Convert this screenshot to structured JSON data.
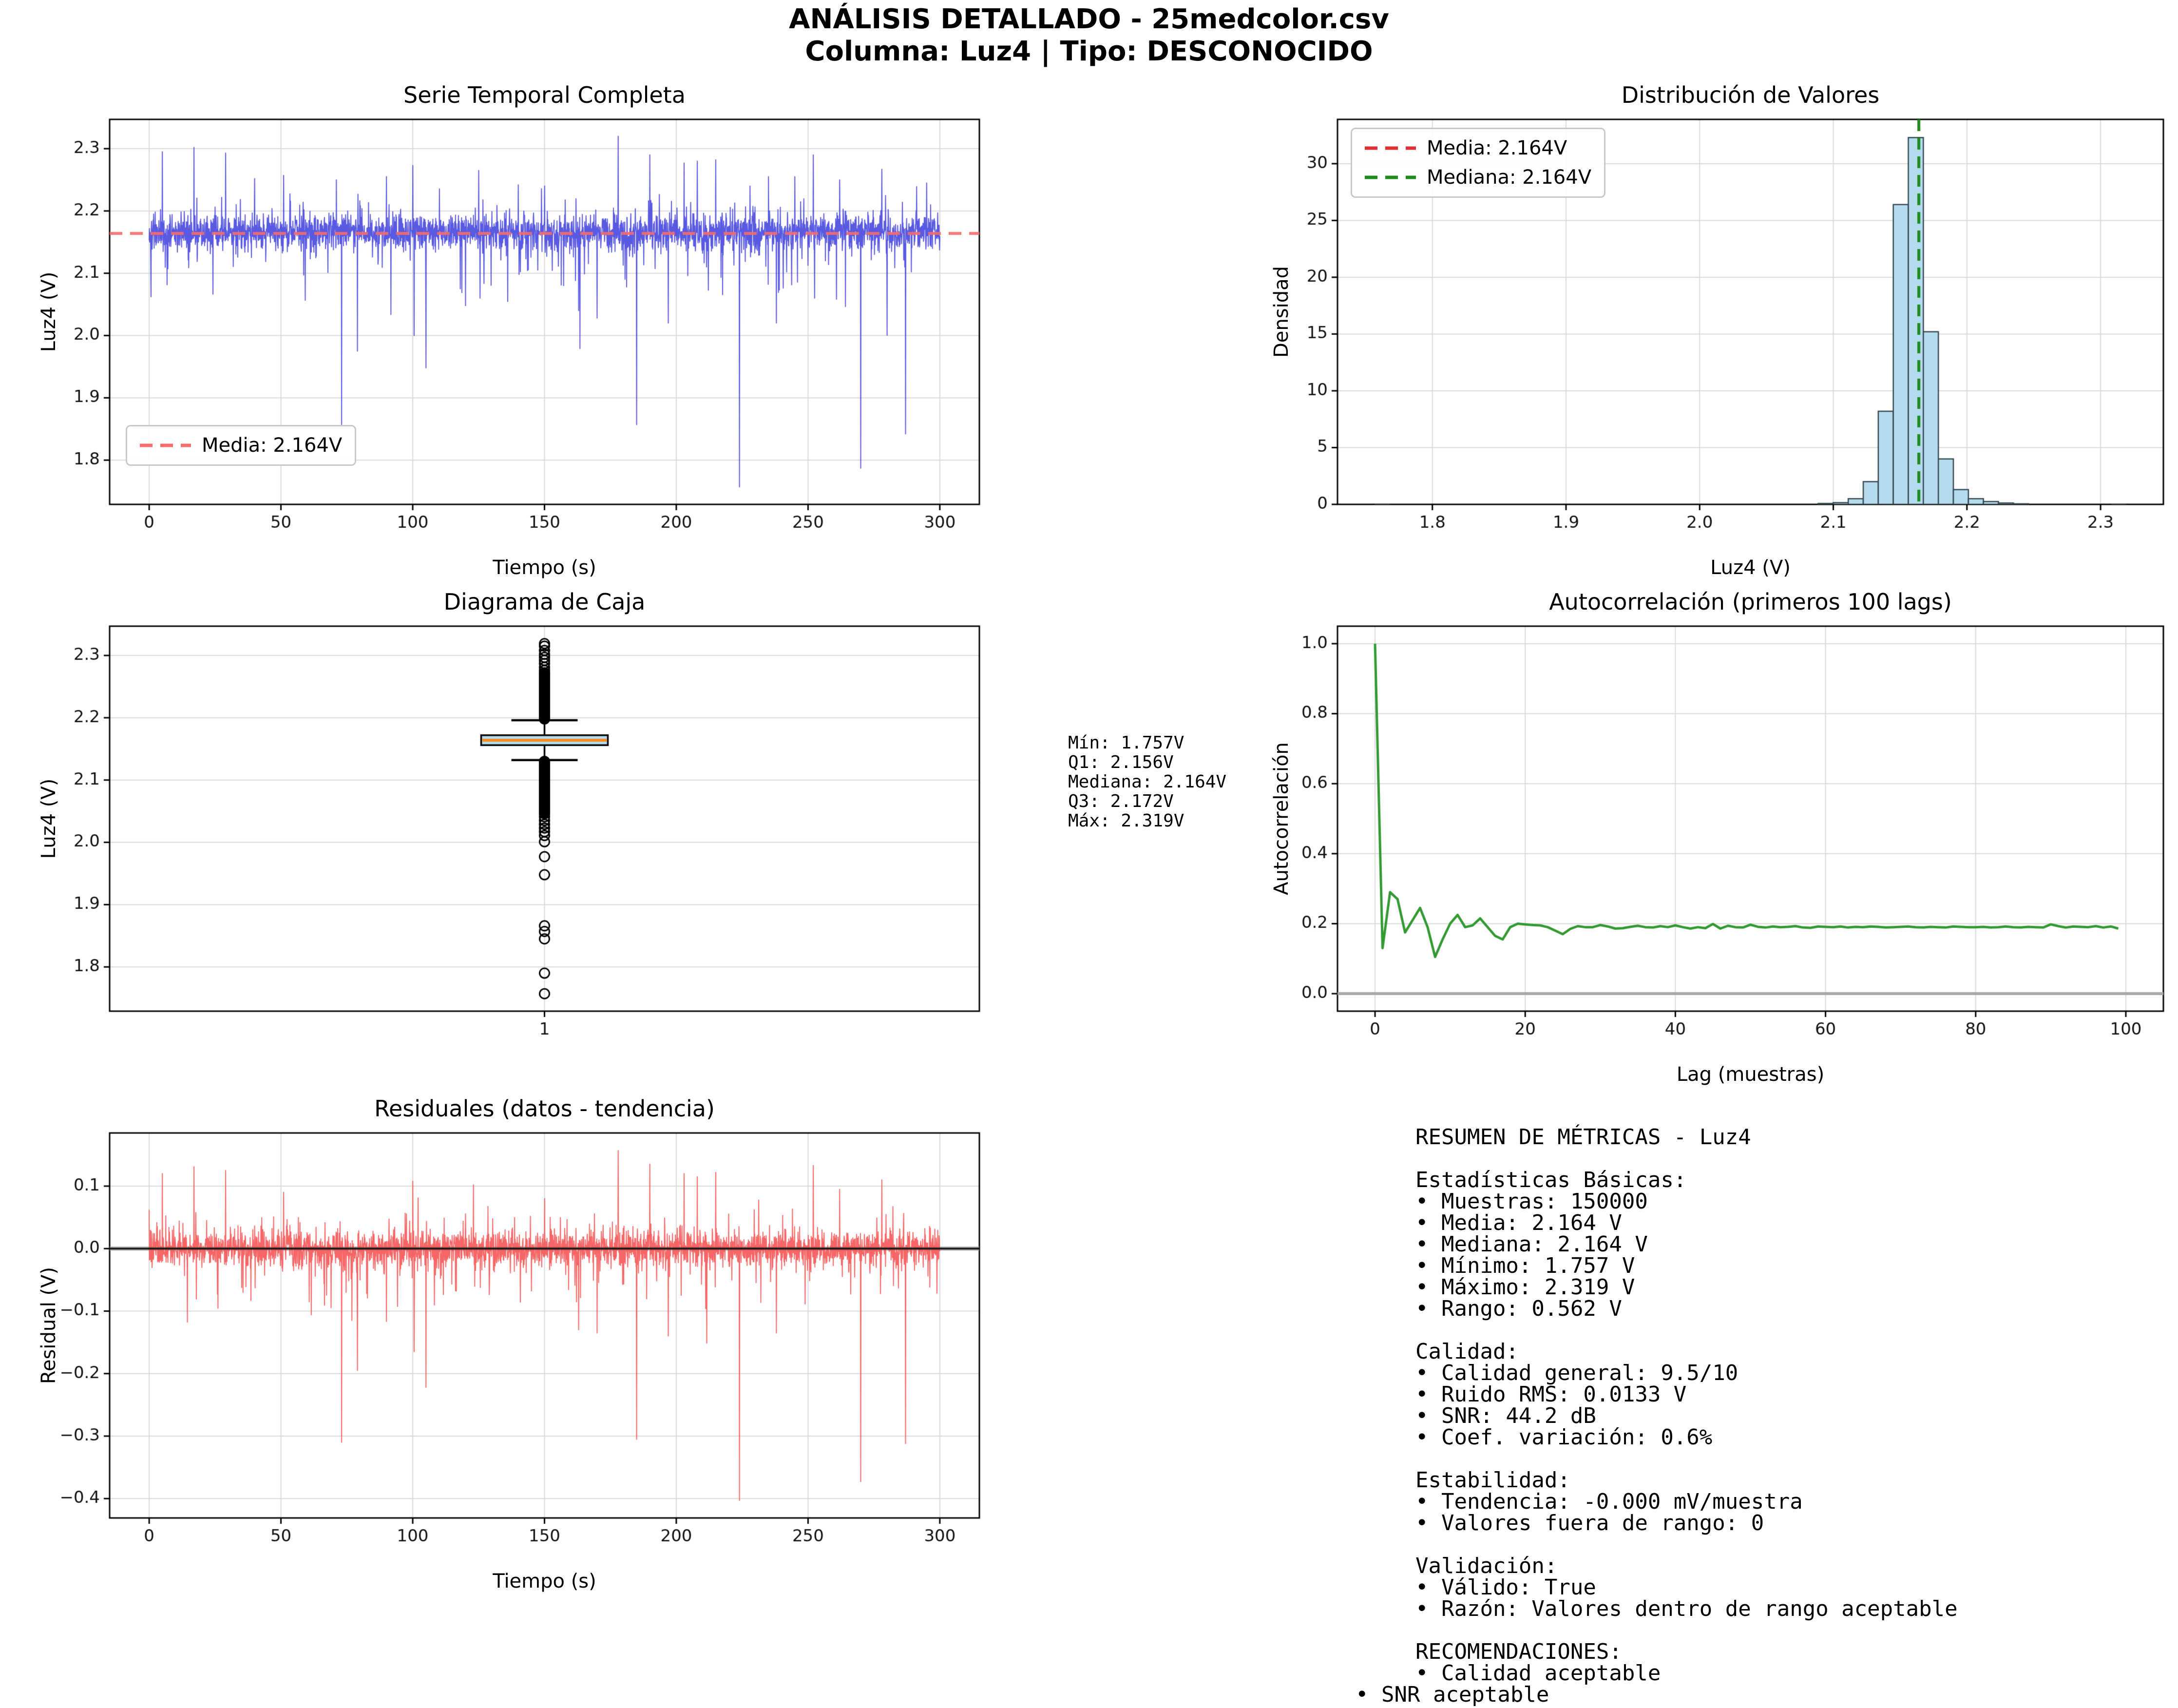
{
  "header": {
    "title_line1": "ANÁLISIS DETALLADO - 25medcolor.csv",
    "title_line2": "Columna: Luz4 | Tipo: DESCONOCIDO"
  },
  "colors": {
    "series_blue": "#3c3cdc",
    "mean_red": "#f56b6b",
    "legend_red": "#e03030",
    "median_green": "#1e8c1e",
    "residual_red": "#f64b4b",
    "hist_fill": "#b3dcee",
    "hist_edge": "#37474f",
    "box_median_orange": "#ff8c1a",
    "grid_gray": "#d9d9d9"
  },
  "stats_annotation": "Mín: 1.757V\nQ1: 2.156V\nMediana: 2.164V\nQ3: 2.172V\nMáx: 2.319V",
  "summary": {
    "text": "RESUMEN DE MÉTRICAS - Luz4\n\nEstadísticas Básicas:\n• Muestras: 150000\n• Media: 2.164 V\n• Mediana: 2.164 V\n• Mínimo: 1.757 V\n• Máximo: 2.319 V\n• Rango: 0.562 V\n\nCalidad:\n• Calidad general: 9.5/10\n• Ruido RMS: 0.0133 V\n• SNR: 44.2 dB\n• Coef. variación: 0.6%\n\nEstabilidad:\n• Tendencia: -0.000 mV/muestra\n• Valores fuera de rango: 0\n\nValidación:\n• Válido: True\n• Razón: Valores dentro de rango aceptable\n\nRECOMENDACIONES:\n• Calidad aceptable",
    "last_line": "• SNR aceptable"
  },
  "chart_data": [
    {
      "id": "timeseries",
      "type": "line",
      "title": "Serie Temporal Completa",
      "xlabel": "Tiempo (s)",
      "ylabel": "Luz4 (V)",
      "legend": [
        {
          "label": "Media: 2.164V",
          "color": "#f56b6b",
          "dash": true
        }
      ],
      "xlim": [
        -15,
        315
      ],
      "ylim": [
        1.729,
        2.347
      ],
      "xticks": [
        0,
        50,
        100,
        150,
        200,
        250,
        300
      ],
      "xtick_labels": [
        "0",
        "50",
        "100",
        "150",
        "200",
        "250",
        "300"
      ],
      "yticks": [
        1.8,
        1.9,
        2.0,
        2.1,
        2.2,
        2.3
      ],
      "ytick_labels": [
        "1.8",
        "1.9",
        "2.0",
        "2.1",
        "2.2",
        "2.3"
      ],
      "series_color": "#3c3cdc",
      "mean_line": {
        "value": 2.164,
        "color": "#f56b6b"
      },
      "noise": {
        "seed": 42,
        "n": 3000,
        "base": 2.166,
        "sigma": 0.014,
        "down_tail_p": 0.06,
        "down_tail_scale": 0.05,
        "up_tail_p": 0.045,
        "up_tail_scale": 0.028,
        "t_max": 300
      },
      "spikes": [
        [
          5,
          2.295
        ],
        [
          17,
          2.302
        ],
        [
          29,
          2.293
        ],
        [
          40,
          2.252
        ],
        [
          51,
          2.257
        ],
        [
          71,
          2.25
        ],
        [
          73,
          1.857
        ],
        [
          79,
          1.975
        ],
        [
          90,
          2.255
        ],
        [
          100,
          2.273
        ],
        [
          100.5,
          2.0
        ],
        [
          105,
          1.948
        ],
        [
          118,
          2.075
        ],
        [
          125,
          2.265
        ],
        [
          125.5,
          2.06
        ],
        [
          140,
          2.242
        ],
        [
          150,
          2.24
        ],
        [
          163,
          2.04
        ],
        [
          170,
          2.028
        ],
        [
          178,
          2.32
        ],
        [
          185,
          1.857
        ],
        [
          190,
          2.29
        ],
        [
          197,
          2.02
        ],
        [
          203,
          2.277
        ],
        [
          208,
          2.28
        ],
        [
          215,
          2.282
        ],
        [
          224,
          1.757
        ],
        [
          228,
          2.24
        ],
        [
          235,
          2.255
        ],
        [
          238,
          2.02
        ],
        [
          245,
          2.255
        ],
        [
          252,
          2.29
        ],
        [
          252.5,
          2.06
        ],
        [
          262,
          2.25
        ],
        [
          270,
          1.787
        ],
        [
          278,
          2.267
        ],
        [
          287,
          1.842
        ],
        [
          295,
          2.245
        ]
      ]
    },
    {
      "id": "histogram",
      "type": "bar",
      "title": "Distribución de Valores",
      "xlabel": "Luz4 (V)",
      "ylabel": "Densidad",
      "legend": [
        {
          "label": "Media: 2.164V",
          "color": "#e03030",
          "dash": true
        },
        {
          "label": "Mediana: 2.164V",
          "color": "#1e8c1e",
          "dash": true
        }
      ],
      "xlim": [
        1.729,
        2.347
      ],
      "ylim": [
        0,
        33.9
      ],
      "xticks": [
        1.8,
        1.9,
        2.0,
        2.1,
        2.2,
        2.3
      ],
      "xtick_labels": [
        "1.8",
        "1.9",
        "2.0",
        "2.1",
        "2.2",
        "2.3"
      ],
      "yticks": [
        0,
        5,
        10,
        15,
        20,
        25,
        30
      ],
      "ytick_labels": [
        "0",
        "5",
        "10",
        "15",
        "20",
        "25",
        "30"
      ],
      "bar_fill": "#b3dcee",
      "bar_edge": "#37474f",
      "bin_start": 2.0887,
      "bin_width": 0.01124,
      "densities": [
        0.08,
        0.15,
        0.5,
        2.0,
        8.2,
        26.4,
        32.3,
        15.2,
        4.0,
        1.3,
        0.5,
        0.25,
        0.12,
        0.05
      ],
      "extra_bins": [
        {
          "x": 1.757,
          "h": 0.05
        },
        {
          "x": 2.308,
          "h": 0.05
        }
      ],
      "mean_line": {
        "value": 2.164,
        "color": "#e03030"
      },
      "median_line": {
        "value": 2.164,
        "color": "#1e8c1e"
      }
    },
    {
      "id": "boxplot",
      "type": "box",
      "title": "Diagrama de Caja",
      "xlabel": "",
      "ylabel": "Luz4 (V)",
      "xlim": [
        0.5,
        1.5
      ],
      "ylim": [
        1.729,
        2.347
      ],
      "xticks": [
        1
      ],
      "xtick_labels": [
        "1"
      ],
      "yticks": [
        1.8,
        1.9,
        2.0,
        2.1,
        2.2,
        2.3
      ],
      "ytick_labels": [
        "1.8",
        "1.9",
        "2.0",
        "2.1",
        "2.2",
        "2.3"
      ],
      "q1": 2.156,
      "median": 2.164,
      "q3": 2.172,
      "whisker_low": 2.132,
      "whisker_high": 2.196,
      "box_fill": "#b3dcee",
      "box_edge": "#000000",
      "median_color": "#ff8c1a",
      "outlier_bands": [
        {
          "from": 2.198,
          "to": 2.272,
          "count": 60
        },
        {
          "from": 2.046,
          "to": 2.13,
          "count": 60
        }
      ],
      "outliers": [
        2.276,
        2.281,
        2.287,
        2.292,
        2.297,
        2.302,
        2.308,
        2.315,
        2.319,
        2.041,
        2.035,
        2.029,
        2.023,
        2.017,
        2.011,
        2.001,
        1.977,
        1.948,
        1.866,
        1.857,
        1.845,
        1.79,
        1.757
      ]
    },
    {
      "id": "autocorr",
      "type": "line",
      "title": "Autocorrelación (primeros 100 lags)",
      "xlabel": "Lag (muestras)",
      "ylabel": "Autocorrelación",
      "xlim": [
        -5,
        105
      ],
      "ylim": [
        -0.05,
        1.05
      ],
      "xticks": [
        0,
        20,
        40,
        60,
        80,
        100
      ],
      "xtick_labels": [
        "0",
        "20",
        "40",
        "60",
        "80",
        "100"
      ],
      "yticks": [
        0.0,
        0.2,
        0.4,
        0.6,
        0.8,
        1.0
      ],
      "ytick_labels": [
        "0.0",
        "0.2",
        "0.4",
        "0.6",
        "0.8",
        "1.0"
      ],
      "line_color": "#339933",
      "zero_line_color": "#a8a8a8",
      "values": [
        1.0,
        0.13,
        0.29,
        0.27,
        0.175,
        0.21,
        0.245,
        0.19,
        0.105,
        0.155,
        0.2,
        0.225,
        0.19,
        0.195,
        0.215,
        0.19,
        0.165,
        0.155,
        0.19,
        0.2,
        0.198,
        0.196,
        0.195,
        0.19,
        0.18,
        0.17,
        0.185,
        0.193,
        0.19,
        0.19,
        0.196,
        0.192,
        0.186,
        0.187,
        0.191,
        0.194,
        0.19,
        0.189,
        0.193,
        0.19,
        0.195,
        0.19,
        0.186,
        0.19,
        0.187,
        0.199,
        0.186,
        0.194,
        0.19,
        0.189,
        0.197,
        0.191,
        0.189,
        0.192,
        0.19,
        0.191,
        0.193,
        0.189,
        0.188,
        0.192,
        0.191,
        0.19,
        0.192,
        0.189,
        0.191,
        0.19,
        0.192,
        0.191,
        0.189,
        0.19,
        0.191,
        0.192,
        0.19,
        0.189,
        0.191,
        0.19,
        0.189,
        0.192,
        0.191,
        0.19,
        0.19,
        0.191,
        0.189,
        0.19,
        0.192,
        0.19,
        0.189,
        0.191,
        0.19,
        0.189,
        0.198,
        0.193,
        0.189,
        0.192,
        0.191,
        0.19,
        0.193,
        0.189,
        0.192,
        0.186
      ]
    },
    {
      "id": "residuals",
      "type": "line",
      "title": "Residuales (datos - tendencia)",
      "xlabel": "Tiempo (s)",
      "ylabel": "Residual (V)",
      "xlim": [
        -15,
        315
      ],
      "ylim": [
        -0.431,
        0.185
      ],
      "xticks": [
        0,
        50,
        100,
        150,
        200,
        250,
        300
      ],
      "xtick_labels": [
        "0",
        "50",
        "100",
        "150",
        "200",
        "250",
        "300"
      ],
      "yticks": [
        0.1,
        0.0,
        -0.1,
        -0.2,
        -0.3,
        -0.4
      ],
      "ytick_labels": [
        "0.1",
        "0.0",
        "−0.1",
        "−0.2",
        "−0.3",
        "−0.4"
      ],
      "series_color": "#f64b4b",
      "zero_line": true,
      "noise": {
        "seed": 7,
        "n": 3000,
        "base": 0,
        "sigma": 0.014,
        "down_tail_p": 0.06,
        "down_tail_scale": 0.05,
        "up_tail_p": 0.045,
        "up_tail_scale": 0.028,
        "t_max": 300
      },
      "spikes": [
        [
          5,
          0.12
        ],
        [
          17,
          0.131
        ],
        [
          29,
          0.125
        ],
        [
          51,
          0.09
        ],
        [
          73,
          -0.31
        ],
        [
          79,
          -0.195
        ],
        [
          100,
          0.108
        ],
        [
          100.5,
          -0.165
        ],
        [
          105,
          -0.222
        ],
        [
          123,
          0.102
        ],
        [
          150,
          0.08
        ],
        [
          163,
          -0.13
        ],
        [
          170,
          -0.135
        ],
        [
          178,
          0.157
        ],
        [
          185,
          -0.305
        ],
        [
          190,
          0.135
        ],
        [
          197,
          -0.14
        ],
        [
          203,
          0.12
        ],
        [
          208,
          0.115
        ],
        [
          215,
          0.122
        ],
        [
          224,
          -0.403
        ],
        [
          238,
          -0.135
        ],
        [
          252,
          0.133
        ],
        [
          262,
          0.095
        ],
        [
          270,
          -0.373
        ],
        [
          278,
          0.11
        ],
        [
          287,
          -0.312
        ]
      ]
    }
  ]
}
